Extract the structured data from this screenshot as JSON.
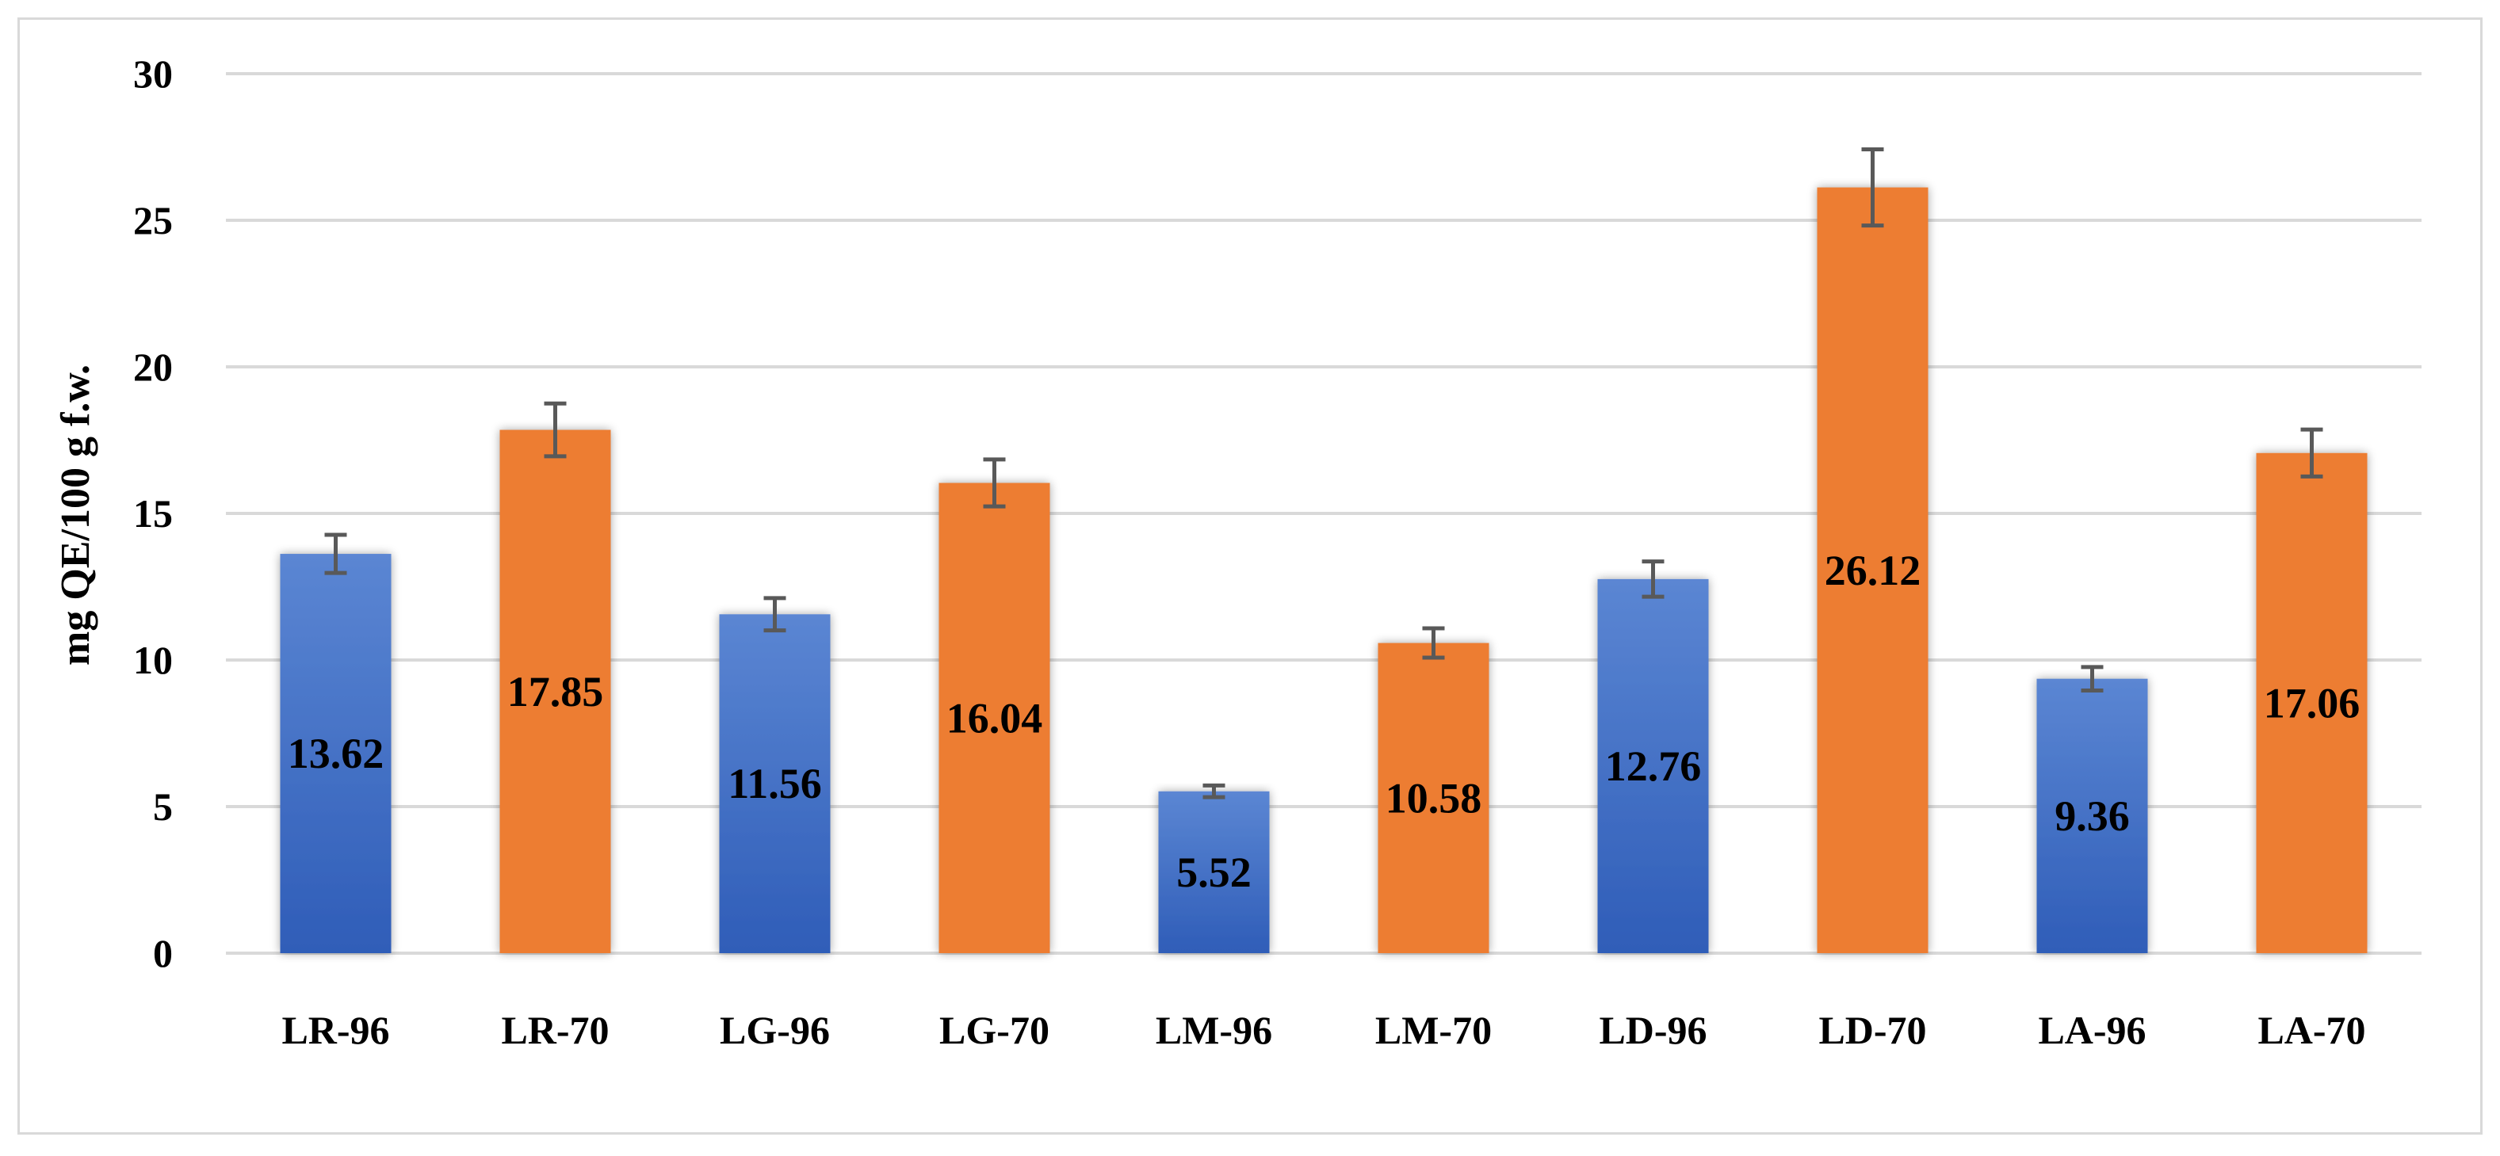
{
  "chart_data": {
    "type": "bar",
    "title": "",
    "xlabel": "",
    "ylabel": "mg QE/100 g f.w.",
    "ylim": [
      0,
      30
    ],
    "yticks": [
      0,
      5,
      10,
      15,
      20,
      25,
      30
    ],
    "grid": true,
    "categories": [
      "LR-96",
      "LR-70",
      "LG-96",
      "LG-70",
      "LM-96",
      "LM-70",
      "LD-96",
      "LD-70",
      "LA-96",
      "LA-70"
    ],
    "values": [
      13.62,
      17.85,
      11.56,
      16.04,
      5.52,
      10.58,
      12.76,
      26.12,
      9.36,
      17.06
    ],
    "value_labels": [
      "13.62",
      "17.85",
      "11.56",
      "16.04",
      "5.52",
      "10.58",
      "12.76",
      "26.12",
      "9.36",
      "17.06"
    ],
    "errors": [
      0.65,
      0.9,
      0.55,
      0.8,
      0.2,
      0.5,
      0.6,
      1.3,
      0.4,
      0.8
    ],
    "colors": [
      "#4472c4",
      "#ed7d31",
      "#4472c4",
      "#ed7d31",
      "#4472c4",
      "#ed7d31",
      "#4472c4",
      "#ed7d31",
      "#4472c4",
      "#ed7d31"
    ],
    "blue_top": "#5b86d3",
    "blue_bottom": "#2f5db8",
    "orange": "#ed7d31",
    "gridline_color": "#d9d9d9",
    "errorbar_color": "#595959"
  }
}
